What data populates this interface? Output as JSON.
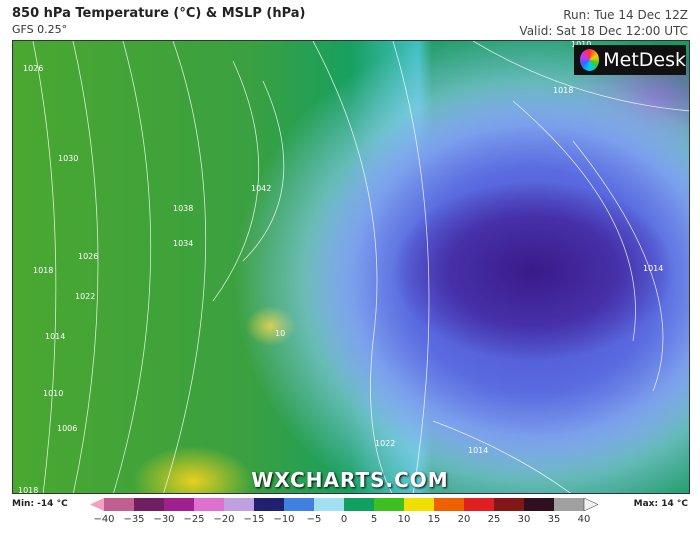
{
  "header": {
    "title": "850 hPa Temperature (°C) & MSLP (hPa)",
    "model": "GFS 0.25°",
    "run": "Run: Tue 14 Dec 12Z",
    "valid": "Valid: Sat 18 Dec 12:00 UTC"
  },
  "logo": {
    "text": "MetDesk"
  },
  "watermark": "WXCHARTS.COM",
  "isobar_labels": [
    "1026",
    "1030",
    "1042",
    "1038",
    "1034",
    "1026",
    "1022",
    "1018",
    "1014",
    "1010",
    "1006",
    "1018",
    "1014",
    "1010",
    "1022",
    "1014",
    "1018",
    "10"
  ],
  "legend": {
    "min": "Min: -14 °C",
    "max": "Max: 14 °C",
    "unit": "°C",
    "ticks": [
      "−40",
      "−35",
      "−30",
      "−25",
      "−20",
      "−15",
      "−10",
      "−5",
      "0",
      "5",
      "10",
      "15",
      "20",
      "25",
      "30",
      "35",
      "40"
    ],
    "colors": [
      "#f4a0c0",
      "#c06090",
      "#702060",
      "#a02090",
      "#e070d0",
      "#c0a0e0",
      "#202070",
      "#4080e0",
      "#a0e0f0",
      "#10a060",
      "#40c020",
      "#f0e000",
      "#f06000",
      "#e02020",
      "#801818",
      "#301020",
      "#a0a0a0",
      "#f0f0f0"
    ]
  }
}
